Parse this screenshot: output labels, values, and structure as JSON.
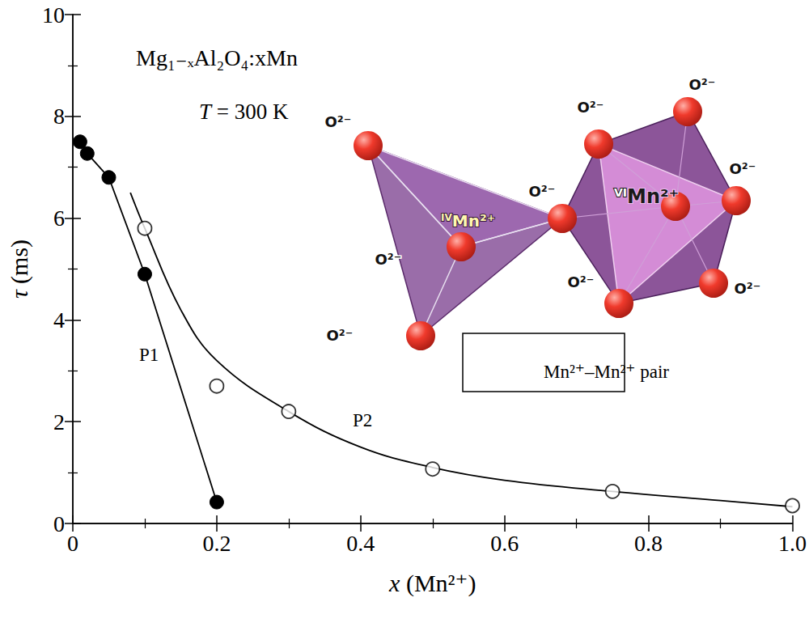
{
  "chart_data": {
    "type": "scatter",
    "annotations": [
      "Mg₁₋ₓAl₂O₄:xMn",
      "T = 300 K",
      "P1",
      "P2"
    ],
    "x_label": "x (Mn²⁺)",
    "y_label": "τ (ms)",
    "xlim": [
      0,
      1
    ],
    "xticks": [
      0,
      0.2,
      0.4,
      0.6,
      0.8,
      {
        "value": 1,
        "label": "1.0"
      }
    ],
    "ylim": [
      0,
      10
    ],
    "yticks": [
      0,
      2,
      4,
      6,
      8,
      10
    ],
    "grid": false,
    "series": [
      {
        "name": "P1",
        "type": "line",
        "marker": "filled",
        "line_style": "solid",
        "color": "#000000",
        "x": [
          0.01,
          0.02,
          0.05,
          0.1,
          0.2
        ],
        "values": [
          7.5,
          7.27,
          6.8,
          4.9,
          0.42
        ]
      },
      {
        "name": "P2",
        "type": "scatter",
        "marker": "open",
        "color": "#000000",
        "x": [
          0.1,
          0.2,
          0.3,
          0.5,
          0.75,
          1.0
        ],
        "values": [
          5.8,
          2.7,
          2.2,
          1.07,
          0.63,
          0.35
        ],
        "curve": {
          "x": [
            0.08,
            0.1,
            0.15,
            0.2,
            0.3,
            0.4,
            0.5,
            0.6,
            0.75,
            0.9,
            1.0
          ],
          "values": [
            6.5,
            5.8,
            4.2,
            3.2,
            2.2,
            1.5,
            1.1,
            0.85,
            0.63,
            0.45,
            0.33
          ]
        }
      }
    ]
  },
  "inset": {
    "ligand_label": "O²⁻",
    "tetrahedral_ion": {
      "prefix": "IV",
      "text": "Mn²⁺"
    },
    "octahedral_ion": {
      "prefix": "VI",
      "text": "Mn²⁺"
    },
    "caption": "Mn²⁺–Mn²⁺ pair"
  }
}
